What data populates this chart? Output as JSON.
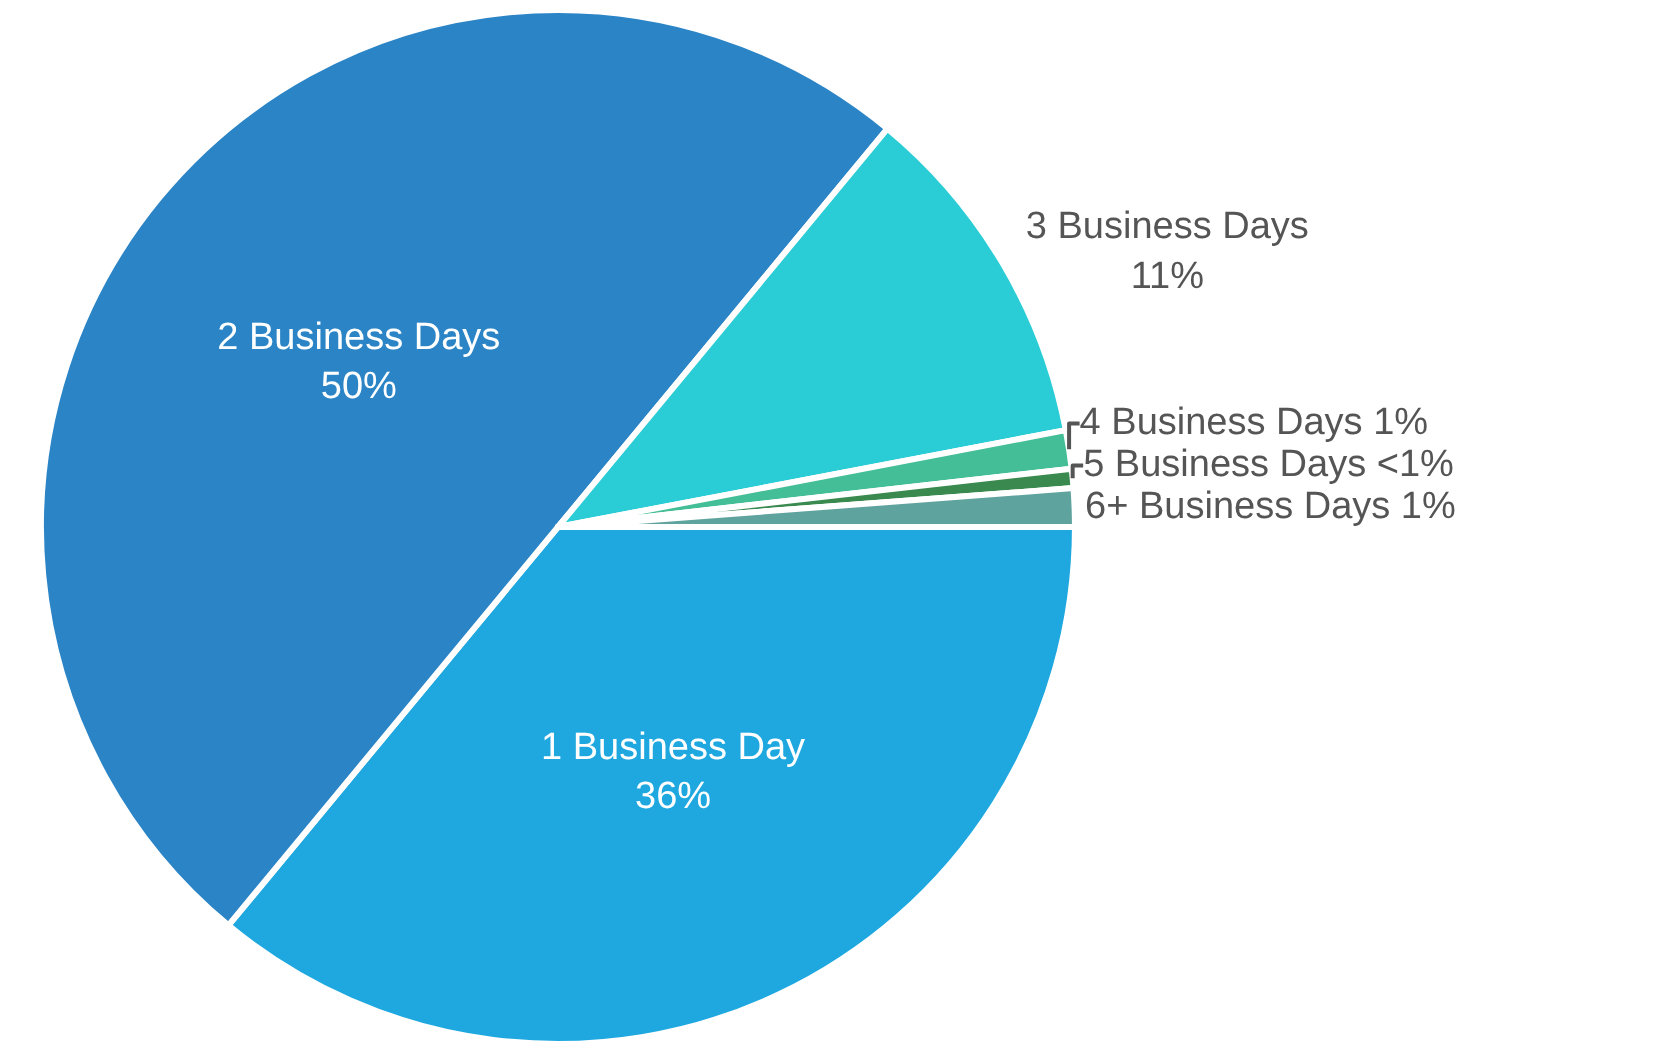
{
  "chart_data": {
    "type": "pie",
    "categories": [
      "1 Business Day",
      "2 Business Days",
      "3 Business Days",
      "4 Business Days",
      "5 Business Days",
      "6+ Business Days"
    ],
    "values": [
      36,
      50,
      11,
      1.2,
      0.6,
      1.2
    ],
    "value_labels": [
      "36%",
      "50%",
      "11%",
      "1%",
      "<1%",
      "1%"
    ],
    "colors": [
      "#1fa8e0",
      "#2a84c6",
      "#2acdd6",
      "#44be96",
      "#3a8a50",
      "#5fa39e"
    ],
    "legend": false
  }
}
